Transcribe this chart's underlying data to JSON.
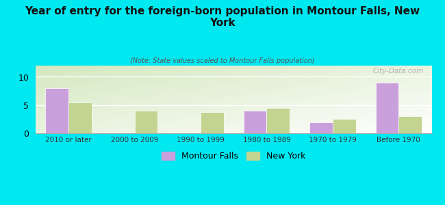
{
  "title": "Year of entry for the foreign-born population in Montour Falls, New\nYork",
  "subtitle": "(Note: State values scaled to Montour Falls population)",
  "categories": [
    "2010 or later",
    "2000 to 2009",
    "1990 to 1999",
    "1980 to 1989",
    "1970 to 1979",
    "Before 1970"
  ],
  "montour_falls": [
    8,
    0,
    0,
    4,
    2,
    9
  ],
  "new_york": [
    5.5,
    4,
    3.8,
    4.5,
    2.5,
    3
  ],
  "montour_color": "#c9a0dc",
  "ny_color": "#c2d490",
  "background_color": "#00e8f0",
  "ylim": [
    0,
    12
  ],
  "yticks": [
    0,
    5,
    10
  ],
  "bar_width": 0.35,
  "watermark": "City-Data.com",
  "legend_montour": "Montour Falls",
  "legend_ny": "New York"
}
